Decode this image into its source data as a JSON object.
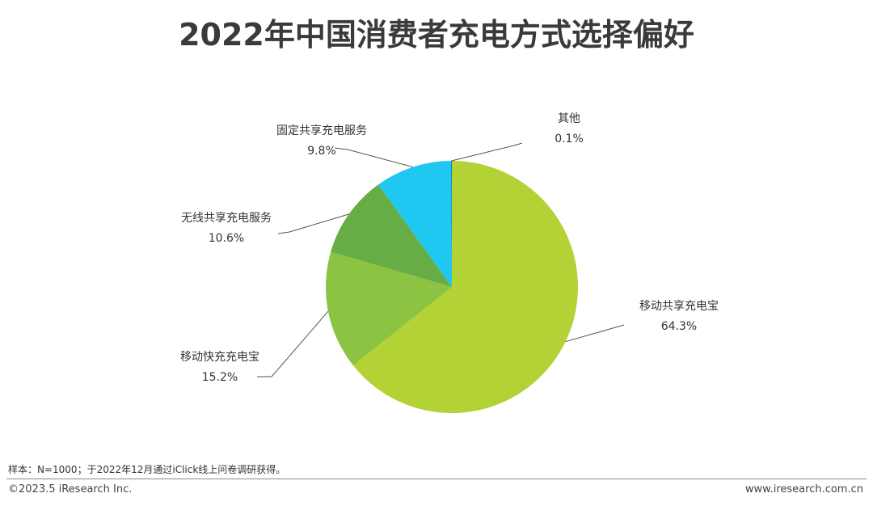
{
  "chart_data": {
    "type": "pie",
    "title": "2022年中国消费者充电方式选择偏好",
    "slices": [
      {
        "label": "移动共享充电宝",
        "value_label": "64.3%",
        "value": 64.3,
        "color": "#b2d235"
      },
      {
        "label": "移动快充充电宝",
        "value_label": "15.2%",
        "value": 15.2,
        "color": "#8cc342"
      },
      {
        "label": "无线共享充电服务",
        "value_label": "10.6%",
        "value": 10.6,
        "color": "#66ad45"
      },
      {
        "label": "固定共享充电服务",
        "value_label": "9.8%",
        "value": 9.8,
        "color": "#1ec8f0"
      },
      {
        "label": "其他",
        "value_label": "0.1%",
        "value": 0.1,
        "color": "#0070c0"
      }
    ],
    "start_angle_deg": 0,
    "direction": "clockwise"
  },
  "footer": {
    "note": "样本：N=1000；于2022年12月通过iClick线上问卷调研获得。",
    "copyright": "©2023.5 iResearch Inc.",
    "website": "www.iresearch.com.cn"
  }
}
